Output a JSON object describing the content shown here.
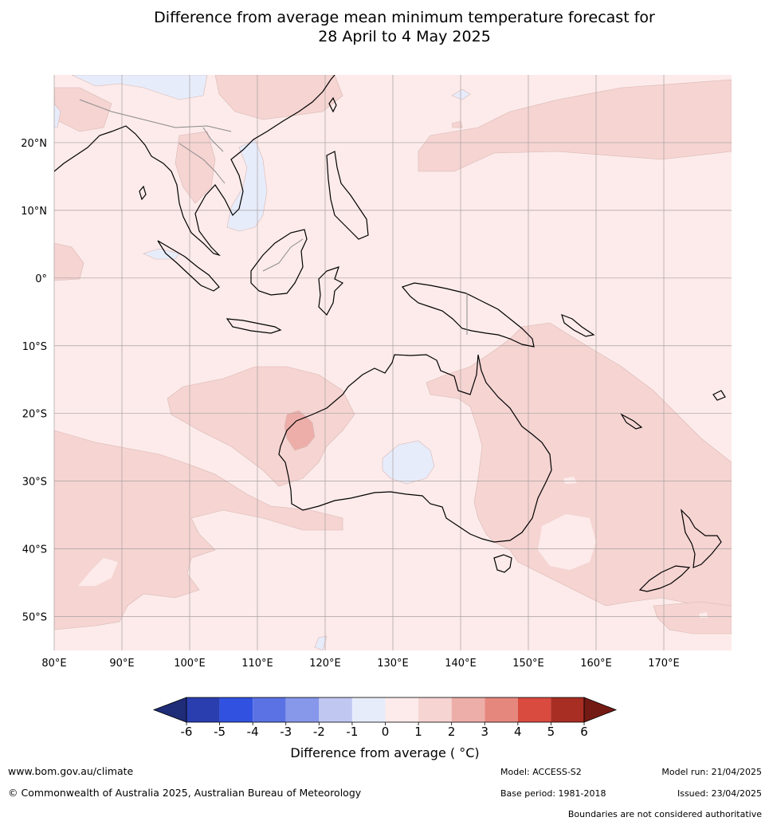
{
  "title": {
    "line1": "Difference from average mean minimum temperature forecast for",
    "line2": "28 April to 4 May 2025"
  },
  "map": {
    "lon_ticks": [
      "80°E",
      "90°E",
      "100°E",
      "110°E",
      "120°E",
      "130°E",
      "140°E",
      "150°E",
      "160°E",
      "170°E"
    ],
    "lat_ticks": [
      "20°N",
      "10°N",
      "0°",
      "10°S",
      "20°S",
      "30°S",
      "40°S",
      "50°S"
    ],
    "lon_range": [
      80,
      180
    ],
    "lat_range": [
      -55,
      30
    ],
    "background_category": "0 to 1",
    "colors": {
      "below_minus6": "#1f2c78",
      "m6_m5": "#2a3eb0",
      "m5_m4": "#3152e0",
      "m4_m3": "#5a72e4",
      "m3_m2": "#8797ea",
      "m2_m1": "#c0c8f2",
      "m1_0": "#e7ecfb",
      "0_1": "#fcebea",
      "1_2": "#f5d4d2",
      "2_3": "#edaea9",
      "3_4": "#e6877d",
      "4_5": "#d94a3f",
      "5_6": "#a82d23",
      "above_6": "#741a14",
      "grid": "#a8a0a0",
      "coast": "#000000",
      "border": "#8a8a8a"
    },
    "regions": [
      {
        "name": "north-pacific-warm",
        "category": "1 to 2"
      },
      {
        "name": "indian-ocean-warm",
        "category": "1 to 2"
      },
      {
        "name": "tasman-sea-warm",
        "category": "1 to 2"
      },
      {
        "name": "southern-ocean-warm",
        "category": "1 to 2"
      },
      {
        "name": "pilbara-warm",
        "category": "2 to 3"
      },
      {
        "name": "central-australia-cool",
        "category": "-1 to 0"
      },
      {
        "name": "south-china-sea-cool",
        "category": "-1 to 0"
      }
    ]
  },
  "colorbar": {
    "ticks": [
      "-6",
      "-5",
      "-4",
      "-3",
      "-2",
      "-1",
      "0",
      "1",
      "2",
      "3",
      "4",
      "5",
      "6"
    ],
    "label": "Difference from average ( °C)"
  },
  "footer": {
    "website": "www.bom.gov.au/climate",
    "copyright": "© Commonwealth of Australia 2025, Australian Bureau of Meteorology",
    "model": "Model: ACCESS-S2",
    "base_period": "Base period: 1981-2018",
    "model_run": "Model run: 21/04/2025",
    "issued": "Issued: 23/04/2025",
    "disclaimer": "Boundaries are not considered authoritative"
  }
}
